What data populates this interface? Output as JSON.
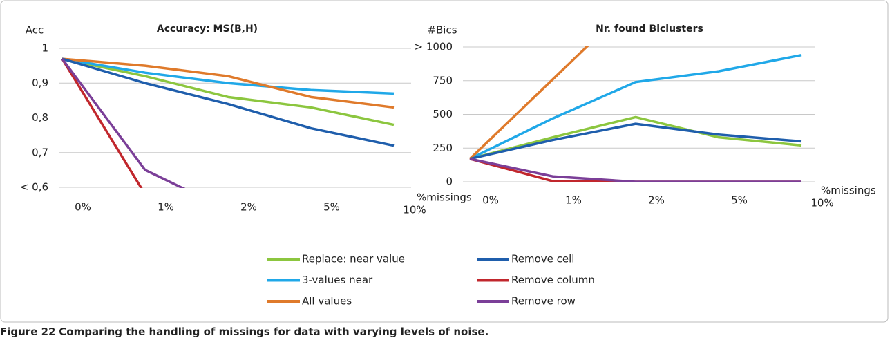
{
  "chart_data": [
    {
      "type": "line",
      "title": "Accuracy: MS(B,H)",
      "y_label": "Acc",
      "x_label": "%missings",
      "categories": [
        "0%",
        "1%",
        "2%",
        "5%",
        "10%"
      ],
      "ylim": [
        0.6,
        1
      ],
      "yticks": [
        {
          "value": 0.6,
          "label": "< 0,6"
        },
        {
          "value": 0.7,
          "label": "0,7"
        },
        {
          "value": 0.8,
          "label": "0,8"
        },
        {
          "value": 0.9,
          "label": "0,9"
        },
        1
      ],
      "grid": true,
      "series": [
        {
          "name": "Replace: near value",
          "color": "#8cc63f",
          "values": [
            0.97,
            0.92,
            0.86,
            0.83,
            0.78
          ]
        },
        {
          "name": "3-values near",
          "color": "#20a8e8",
          "values": [
            0.97,
            0.93,
            0.9,
            0.88,
            0.87
          ]
        },
        {
          "name": "All values",
          "color": "#df7a2b",
          "values": [
            0.97,
            0.95,
            0.92,
            0.86,
            0.83
          ]
        },
        {
          "name": "Remove cell",
          "color": "#1f5eac",
          "values": [
            0.97,
            0.9,
            0.84,
            0.77,
            0.72
          ]
        },
        {
          "name": "Remove column",
          "color": "#c1272d",
          "values": [
            0.97,
            0.58,
            null,
            null,
            null
          ]
        },
        {
          "name": "Remove row",
          "color": "#7b3f98",
          "values": [
            0.97,
            0.65,
            0.535,
            null,
            null
          ]
        }
      ]
    },
    {
      "type": "line",
      "title": "Nr. found Biclusters",
      "y_label": "#Bics",
      "x_label": "%missings",
      "categories": [
        "0%",
        "1%",
        "2%",
        "5%",
        "10%"
      ],
      "ylim": [
        0,
        1000
      ],
      "yticks": [
        0,
        250,
        500,
        750,
        {
          "value": 1000,
          "label": "> 1000"
        }
      ],
      "grid": true,
      "series": [
        {
          "name": "Replace: near value",
          "color": "#8cc63f",
          "values": [
            170,
            330,
            480,
            330,
            270
          ]
        },
        {
          "name": "3-values near",
          "color": "#20a8e8",
          "values": [
            170,
            470,
            740,
            820,
            940
          ]
        },
        {
          "name": "All values",
          "color": "#df7a2b",
          "values": [
            170,
            760,
            1350,
            null,
            null
          ]
        },
        {
          "name": "Remove cell",
          "color": "#1f5eac",
          "values": [
            170,
            310,
            430,
            350,
            300
          ]
        },
        {
          "name": "Remove column",
          "color": "#c1272d",
          "values": [
            170,
            5,
            0,
            0,
            0
          ]
        },
        {
          "name": "Remove row",
          "color": "#7b3f98",
          "values": [
            170,
            40,
            0,
            0,
            0
          ]
        }
      ]
    }
  ],
  "caption": {
    "label": "Figure 22",
    "text": "Comparing the handling of missings for data with varying levels of noise."
  }
}
